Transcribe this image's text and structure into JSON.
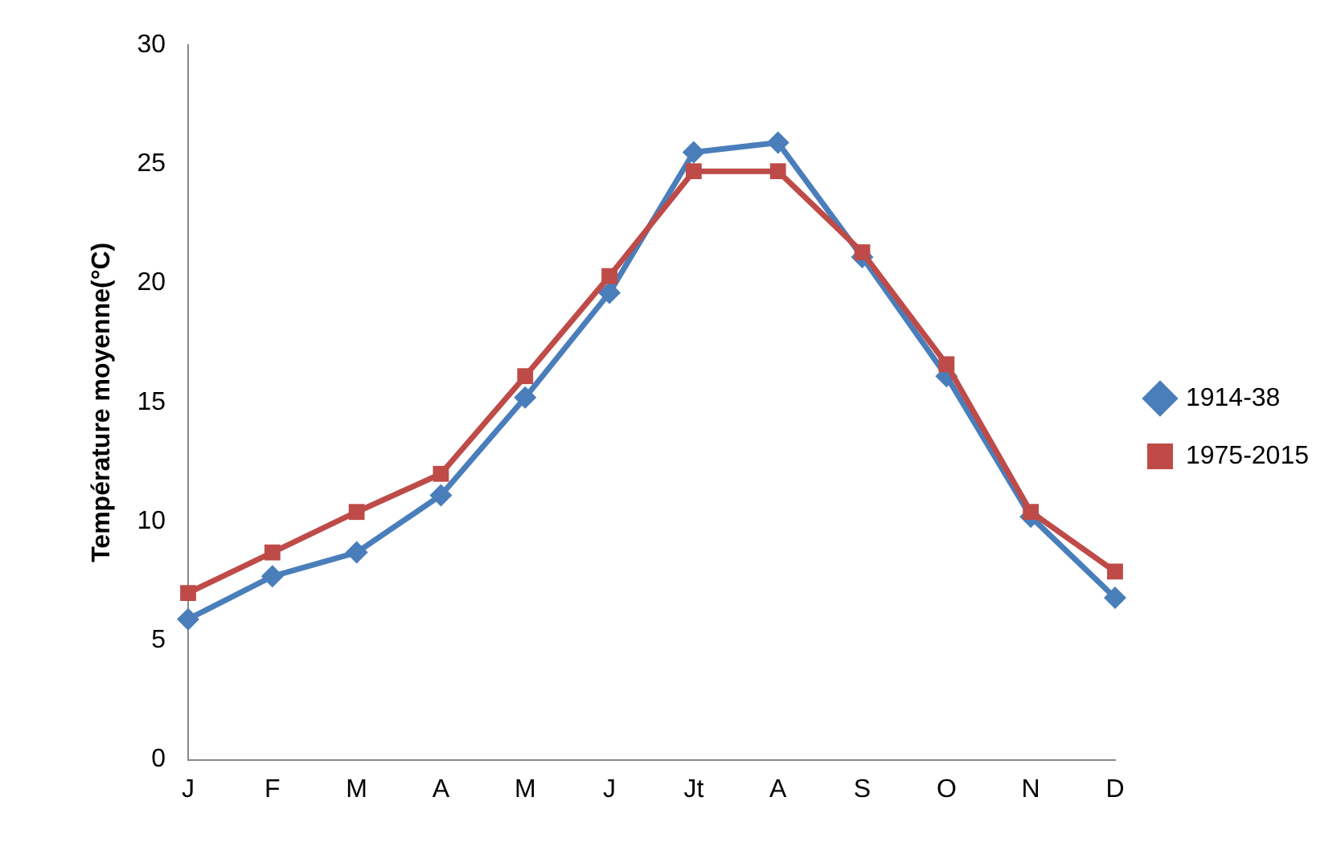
{
  "chart_data": {
    "type": "line",
    "ylabel": "Température moyenne(°C)",
    "categories": [
      "J",
      "F",
      "M",
      "A",
      "M",
      "J",
      "Jt",
      "A",
      "S",
      "O",
      "N",
      "D"
    ],
    "series": [
      {
        "name": "1914-38",
        "color": "#4a7ebb",
        "marker": "diamond",
        "values": [
          5.9,
          7.7,
          8.7,
          11.1,
          15.2,
          19.6,
          25.5,
          25.9,
          21.1,
          16.1,
          10.2,
          6.8
        ]
      },
      {
        "name": "1975-2015",
        "color": "#be4b48",
        "marker": "square",
        "values": [
          7.0,
          8.7,
          10.4,
          12.0,
          16.1,
          20.3,
          24.7,
          24.7,
          21.3,
          16.6,
          10.4,
          7.9
        ]
      }
    ],
    "ylim": [
      0,
      30
    ],
    "yticks": [
      0,
      5,
      10,
      15,
      20,
      25,
      30
    ],
    "grid": false,
    "legend": "right"
  }
}
